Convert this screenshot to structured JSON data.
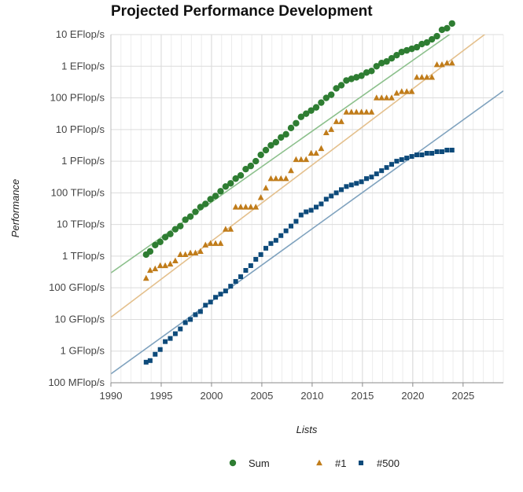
{
  "chart_data": {
    "type": "scatter",
    "title": "Projected Performance Development",
    "xlabel": "Lists",
    "ylabel": "Performance",
    "xlim": [
      1990,
      2029
    ],
    "ylim_log10": [
      -1,
      10
    ],
    "x_ticks": [
      {
        "value": 1990,
        "label": "1990"
      },
      {
        "value": 1995,
        "label": "1995"
      },
      {
        "value": 2000,
        "label": "2000"
      },
      {
        "value": 2005,
        "label": "2005"
      },
      {
        "value": 2010,
        "label": "2010"
      },
      {
        "value": 2015,
        "label": "2015"
      },
      {
        "value": 2020,
        "label": "2020"
      },
      {
        "value": 2025,
        "label": "2025"
      }
    ],
    "y_ticks": [
      {
        "value": 10,
        "label": "10 EFlop/s"
      },
      {
        "value": 9,
        "label": "1 EFlop/s"
      },
      {
        "value": 8,
        "label": "100 PFlop/s"
      },
      {
        "value": 7,
        "label": "10 PFlop/s"
      },
      {
        "value": 6,
        "label": "1 PFlop/s"
      },
      {
        "value": 5,
        "label": "100 TFlop/s"
      },
      {
        "value": 4,
        "label": "10 TFlop/s"
      },
      {
        "value": 3,
        "label": "1 TFlop/s"
      },
      {
        "value": 2,
        "label": "100 GFlop/s"
      },
      {
        "value": 1,
        "label": "10 GFlop/s"
      },
      {
        "value": 0,
        "label": "1 GFlop/s"
      },
      {
        "value": -1,
        "label": "100 MFlop/s"
      }
    ],
    "grid": true,
    "legend_position": "bottom",
    "series": [
      {
        "name": "Sum",
        "marker": "circle",
        "color": "#2e7d32",
        "trend_color": "#8cc08c",
        "trend": [
          [
            1990,
            2.47
          ],
          [
            2029,
            11.2
          ]
        ],
        "points": [
          [
            1993.5,
            3.05
          ],
          [
            1993.9,
            3.15
          ],
          [
            1994.4,
            3.35
          ],
          [
            1994.9,
            3.45
          ],
          [
            1995.4,
            3.6
          ],
          [
            1995.9,
            3.7
          ],
          [
            1996.4,
            3.85
          ],
          [
            1996.9,
            3.95
          ],
          [
            1997.4,
            4.15
          ],
          [
            1997.9,
            4.25
          ],
          [
            1998.4,
            4.4
          ],
          [
            1998.9,
            4.55
          ],
          [
            1999.4,
            4.65
          ],
          [
            1999.9,
            4.8
          ],
          [
            2000.4,
            4.9
          ],
          [
            2000.9,
            5.05
          ],
          [
            2001.4,
            5.2
          ],
          [
            2001.9,
            5.3
          ],
          [
            2002.4,
            5.45
          ],
          [
            2002.9,
            5.55
          ],
          [
            2003.4,
            5.75
          ],
          [
            2003.9,
            5.85
          ],
          [
            2004.4,
            6.0
          ],
          [
            2004.9,
            6.2
          ],
          [
            2005.4,
            6.35
          ],
          [
            2005.9,
            6.5
          ],
          [
            2006.4,
            6.6
          ],
          [
            2006.9,
            6.75
          ],
          [
            2007.4,
            6.85
          ],
          [
            2007.9,
            7.05
          ],
          [
            2008.4,
            7.2
          ],
          [
            2008.9,
            7.4
          ],
          [
            2009.4,
            7.5
          ],
          [
            2009.9,
            7.6
          ],
          [
            2010.4,
            7.7
          ],
          [
            2010.9,
            7.85
          ],
          [
            2011.4,
            8.0
          ],
          [
            2011.9,
            8.1
          ],
          [
            2012.4,
            8.3
          ],
          [
            2012.9,
            8.4
          ],
          [
            2013.4,
            8.55
          ],
          [
            2013.9,
            8.6
          ],
          [
            2014.4,
            8.65
          ],
          [
            2014.9,
            8.7
          ],
          [
            2015.4,
            8.8
          ],
          [
            2015.9,
            8.85
          ],
          [
            2016.4,
            9.0
          ],
          [
            2016.9,
            9.1
          ],
          [
            2017.4,
            9.15
          ],
          [
            2017.9,
            9.25
          ],
          [
            2018.4,
            9.35
          ],
          [
            2018.9,
            9.45
          ],
          [
            2019.4,
            9.5
          ],
          [
            2019.9,
            9.55
          ],
          [
            2020.4,
            9.6
          ],
          [
            2020.9,
            9.7
          ],
          [
            2021.4,
            9.75
          ],
          [
            2021.9,
            9.85
          ],
          [
            2022.4,
            9.95
          ],
          [
            2022.9,
            10.15
          ],
          [
            2023.4,
            10.2
          ],
          [
            2023.9,
            10.35
          ]
        ]
      },
      {
        "name": "#1",
        "marker": "triangle",
        "color": "#c07c1a",
        "trend_color": "#e4c08d",
        "trend": [
          [
            1990,
            1.07
          ],
          [
            2029,
            10.45
          ]
        ],
        "points": [
          [
            1993.5,
            2.3
          ],
          [
            1993.9,
            2.55
          ],
          [
            1994.4,
            2.6
          ],
          [
            1994.9,
            2.7
          ],
          [
            1995.4,
            2.7
          ],
          [
            1995.9,
            2.75
          ],
          [
            1996.4,
            2.85
          ],
          [
            1996.9,
            3.05
          ],
          [
            1997.4,
            3.05
          ],
          [
            1997.9,
            3.1
          ],
          [
            1998.4,
            3.1
          ],
          [
            1998.9,
            3.15
          ],
          [
            1999.4,
            3.35
          ],
          [
            1999.9,
            3.4
          ],
          [
            2000.4,
            3.4
          ],
          [
            2000.9,
            3.4
          ],
          [
            2001.4,
            3.85
          ],
          [
            2001.9,
            3.85
          ],
          [
            2002.4,
            4.55
          ],
          [
            2002.9,
            4.55
          ],
          [
            2003.4,
            4.55
          ],
          [
            2003.9,
            4.55
          ],
          [
            2004.4,
            4.55
          ],
          [
            2004.9,
            4.85
          ],
          [
            2005.4,
            5.15
          ],
          [
            2005.9,
            5.45
          ],
          [
            2006.4,
            5.45
          ],
          [
            2006.9,
            5.45
          ],
          [
            2007.4,
            5.45
          ],
          [
            2007.9,
            5.7
          ],
          [
            2008.4,
            6.05
          ],
          [
            2008.9,
            6.05
          ],
          [
            2009.4,
            6.05
          ],
          [
            2009.9,
            6.25
          ],
          [
            2010.4,
            6.25
          ],
          [
            2010.9,
            6.4
          ],
          [
            2011.4,
            6.9
          ],
          [
            2011.9,
            7.0
          ],
          [
            2012.4,
            7.25
          ],
          [
            2012.9,
            7.25
          ],
          [
            2013.4,
            7.55
          ],
          [
            2013.9,
            7.55
          ],
          [
            2014.4,
            7.55
          ],
          [
            2014.9,
            7.55
          ],
          [
            2015.4,
            7.55
          ],
          [
            2015.9,
            7.55
          ],
          [
            2016.4,
            8.0
          ],
          [
            2016.9,
            8.0
          ],
          [
            2017.4,
            8.0
          ],
          [
            2017.9,
            8.0
          ],
          [
            2018.4,
            8.15
          ],
          [
            2018.9,
            8.2
          ],
          [
            2019.4,
            8.2
          ],
          [
            2019.9,
            8.2
          ],
          [
            2020.4,
            8.65
          ],
          [
            2020.9,
            8.65
          ],
          [
            2021.4,
            8.65
          ],
          [
            2021.9,
            8.65
          ],
          [
            2022.4,
            9.05
          ],
          [
            2022.9,
            9.05
          ],
          [
            2023.4,
            9.1
          ],
          [
            2023.9,
            9.1
          ]
        ]
      },
      {
        "name": "#500",
        "marker": "square",
        "color": "#0d4a7a",
        "trend_color": "#7fa2be",
        "trend": [
          [
            1990,
            -0.72
          ],
          [
            2029,
            8.22
          ]
        ],
        "points": [
          [
            1993.5,
            -0.35
          ],
          [
            1993.9,
            -0.3
          ],
          [
            1994.4,
            -0.1
          ],
          [
            1994.9,
            0.05
          ],
          [
            1995.4,
            0.3
          ],
          [
            1995.9,
            0.4
          ],
          [
            1996.4,
            0.55
          ],
          [
            1996.9,
            0.7
          ],
          [
            1997.4,
            0.9
          ],
          [
            1997.9,
            1.0
          ],
          [
            1998.4,
            1.15
          ],
          [
            1998.9,
            1.25
          ],
          [
            1999.4,
            1.45
          ],
          [
            1999.9,
            1.55
          ],
          [
            2000.4,
            1.7
          ],
          [
            2000.9,
            1.8
          ],
          [
            2001.4,
            1.9
          ],
          [
            2001.9,
            2.05
          ],
          [
            2002.4,
            2.2
          ],
          [
            2002.9,
            2.35
          ],
          [
            2003.4,
            2.55
          ],
          [
            2003.9,
            2.7
          ],
          [
            2004.4,
            2.9
          ],
          [
            2004.9,
            3.05
          ],
          [
            2005.4,
            3.25
          ],
          [
            2005.9,
            3.4
          ],
          [
            2006.4,
            3.5
          ],
          [
            2006.9,
            3.65
          ],
          [
            2007.4,
            3.8
          ],
          [
            2007.9,
            3.95
          ],
          [
            2008.4,
            4.1
          ],
          [
            2008.9,
            4.3
          ],
          [
            2009.4,
            4.4
          ],
          [
            2009.9,
            4.45
          ],
          [
            2010.4,
            4.55
          ],
          [
            2010.9,
            4.65
          ],
          [
            2011.4,
            4.8
          ],
          [
            2011.9,
            4.9
          ],
          [
            2012.4,
            5.0
          ],
          [
            2012.9,
            5.1
          ],
          [
            2013.4,
            5.2
          ],
          [
            2013.9,
            5.25
          ],
          [
            2014.4,
            5.3
          ],
          [
            2014.9,
            5.35
          ],
          [
            2015.4,
            5.45
          ],
          [
            2015.9,
            5.5
          ],
          [
            2016.4,
            5.6
          ],
          [
            2016.9,
            5.7
          ],
          [
            2017.4,
            5.8
          ],
          [
            2017.9,
            5.9
          ],
          [
            2018.4,
            6.0
          ],
          [
            2018.9,
            6.05
          ],
          [
            2019.4,
            6.1
          ],
          [
            2019.9,
            6.15
          ],
          [
            2020.4,
            6.2
          ],
          [
            2020.9,
            6.2
          ],
          [
            2021.4,
            6.25
          ],
          [
            2021.9,
            6.25
          ],
          [
            2022.4,
            6.3
          ],
          [
            2022.9,
            6.3
          ],
          [
            2023.4,
            6.35
          ],
          [
            2023.9,
            6.35
          ]
        ]
      }
    ]
  }
}
